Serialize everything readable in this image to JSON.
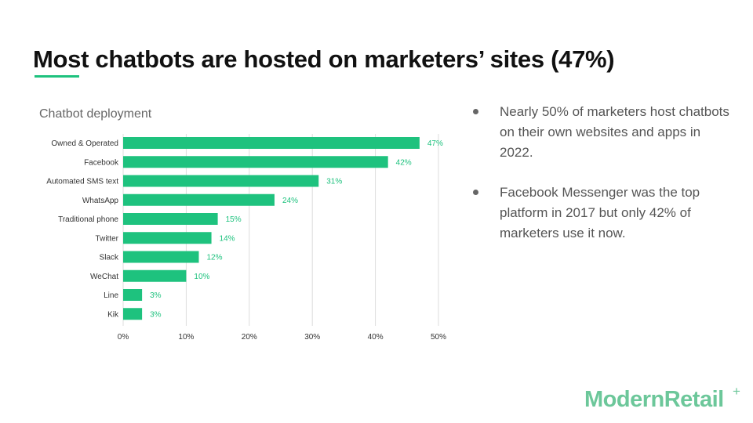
{
  "slide": {
    "title": "Most chatbots are hosted on marketers’ sites (47%)",
    "bullets": [
      "Nearly 50% of marketers host chatbots on their own websites and apps in 2022.",
      "Facebook Messenger was the top platform in 2017 but only 42% of marketers use it now."
    ],
    "logo_text": "ModernRetail",
    "logo_mark": "+"
  },
  "colors": {
    "bar": "#1ec27e",
    "data_label": "#1ec27e",
    "grid": "#dddddd",
    "axis_text": "#333333",
    "chart_title": "#666666",
    "underline": "#1ec27e",
    "logo": "#6cc79a"
  },
  "chart_data": {
    "type": "bar",
    "orientation": "horizontal",
    "title": "Chatbot deployment",
    "categories": [
      "Owned & Operated",
      "Facebook",
      "Automated SMS text",
      "WhatsApp",
      "Traditional phone",
      "Twitter",
      "Slack",
      "WeChat",
      "Line",
      "Kik"
    ],
    "values": [
      47,
      42,
      31,
      24,
      15,
      14,
      12,
      10,
      3,
      3
    ],
    "value_labels": [
      "47%",
      "42%",
      "31%",
      "24%",
      "15%",
      "14%",
      "12%",
      "10%",
      "3%",
      "3%"
    ],
    "xlim": [
      0,
      50
    ],
    "xticks": [
      0,
      10,
      20,
      30,
      40,
      50
    ],
    "xtick_labels": [
      "0%",
      "10%",
      "20%",
      "30%",
      "40%",
      "50%"
    ],
    "xlabel": "",
    "ylabel": "",
    "grid": "vertical",
    "legend": "none"
  }
}
